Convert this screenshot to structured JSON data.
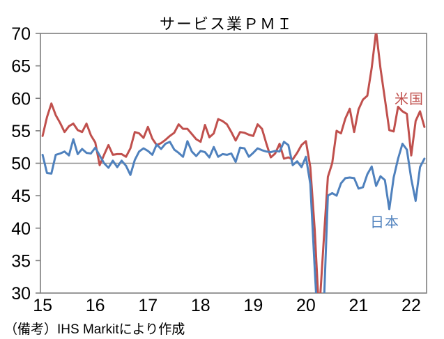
{
  "title": "サービス業ＰＭＩ",
  "source_note": "（備考）IHS Markitにより作成",
  "series_labels": {
    "us": "米国",
    "japan": "日本"
  },
  "colors": {
    "us_line": "#C0504D",
    "japan_line": "#4F81BD",
    "axis_border": "#7F7F7F",
    "reference_line": "#8C8C8C",
    "text": "#000000",
    "background": "#FFFFFF"
  },
  "chart_data": {
    "type": "line",
    "title": "サービス業ＰＭＩ",
    "xlabel": "",
    "ylabel": "",
    "ylim": [
      30,
      70
    ],
    "y_ticks": [
      30,
      35,
      40,
      45,
      50,
      55,
      60,
      65,
      70
    ],
    "x_tick_labels": [
      "15",
      "16",
      "17",
      "18",
      "19",
      "20",
      "21",
      "22"
    ],
    "months_per_x_tick": 12,
    "x_range_note": "monthly data, January 2015 - April 2022",
    "grid": "single horizontal reference line at 50 only",
    "reference_line": 50,
    "legend_position": "inline text labels near line ends",
    "clipping": "values outside 30-70 are clipped at plot border (2020 trough, 2021 US peak)",
    "series": [
      {
        "name": "米国",
        "color": "#C0504D",
        "values": [
          54.2,
          57.1,
          59.2,
          57.4,
          56.2,
          54.8,
          55.7,
          56.1,
          55.1,
          54.8,
          56.1,
          54.3,
          53.2,
          49.7,
          51.3,
          52.8,
          51.3,
          51.4,
          51.4,
          51.0,
          52.3,
          54.8,
          54.6,
          53.9,
          55.6,
          53.8,
          52.8,
          53.1,
          53.6,
          54.2,
          54.7,
          56.0,
          55.3,
          55.3,
          54.5,
          53.7,
          53.3,
          55.9,
          54.0,
          54.6,
          56.8,
          56.5,
          56.0,
          54.8,
          53.5,
          54.8,
          54.7,
          54.4,
          54.2,
          56.0,
          55.3,
          53.0,
          50.9,
          51.5,
          53.0,
          50.7,
          50.9,
          50.6,
          51.6,
          52.8,
          53.4,
          49.4,
          39.8,
          26.7,
          37.5,
          47.9,
          50.0,
          55.0,
          54.6,
          56.9,
          58.4,
          54.8,
          58.3,
          59.8,
          60.4,
          64.7,
          70.4,
          64.6,
          59.9,
          55.1,
          54.9,
          58.7,
          58.0,
          57.6,
          51.2,
          56.5,
          58.0,
          55.6
        ]
      },
      {
        "name": "日本",
        "color": "#4F81BD",
        "values": [
          51.3,
          48.5,
          48.4,
          51.3,
          51.5,
          51.8,
          51.2,
          53.7,
          51.4,
          52.2,
          51.6,
          51.5,
          52.4,
          51.2,
          50.0,
          49.3,
          50.4,
          49.4,
          50.4,
          49.6,
          48.2,
          50.5,
          51.8,
          52.3,
          51.9,
          51.3,
          52.9,
          52.2,
          53.0,
          53.3,
          52.1,
          51.6,
          51.0,
          53.4,
          51.8,
          51.1,
          51.9,
          51.7,
          50.9,
          52.5,
          51.0,
          51.4,
          51.3,
          51.5,
          50.2,
          52.4,
          52.3,
          51.0,
          51.6,
          52.3,
          52.0,
          51.8,
          51.7,
          51.9,
          51.8,
          53.3,
          52.8,
          49.7,
          50.3,
          49.4,
          51.0,
          46.8,
          33.8,
          21.5,
          26.5,
          45.0,
          45.4,
          45.0,
          46.9,
          47.7,
          47.8,
          47.7,
          46.1,
          46.3,
          48.3,
          49.5,
          46.5,
          48.0,
          47.4,
          42.9,
          47.8,
          50.7,
          53.0,
          52.1,
          47.6,
          44.2,
          49.4,
          50.7
        ]
      }
    ]
  }
}
